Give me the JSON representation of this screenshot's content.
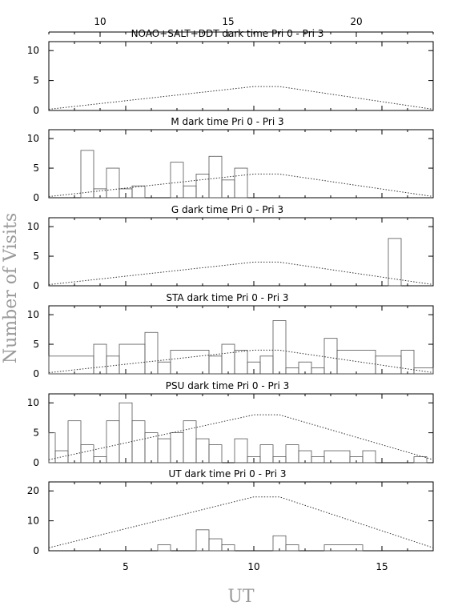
{
  "figure": {
    "ylabel": "Number of Visits",
    "xlabel": "UT",
    "top_axis_ticks": [
      10,
      15,
      20
    ],
    "top_axis_range": [
      8,
      23
    ],
    "bottom_axis_ticks": [
      5,
      10,
      15
    ],
    "bottom_axis_range": [
      2,
      17
    ],
    "colors": {
      "axes": "#000000",
      "histogram": "#555555",
      "dotted": "#333333",
      "axis_title": "#9a9a9a"
    }
  },
  "chart_data": [
    {
      "type": "step",
      "title": "NOAO+SALT+DDT dark time Pri 0 - Pri 3",
      "ylim": [
        0,
        11.5
      ],
      "yticks": [
        0,
        5,
        10
      ],
      "histogram": [],
      "dotted_line": {
        "x": [
          2,
          10,
          11,
          17
        ],
        "y": [
          0.2,
          4.0,
          4.0,
          0.2
        ]
      }
    },
    {
      "type": "step",
      "title": "M    dark time Pri 0 - Pri 3",
      "ylim": [
        0,
        11.5
      ],
      "yticks": [
        0,
        5,
        10
      ],
      "histogram": [
        {
          "x0": 3.25,
          "x1": 3.75,
          "y": 8
        },
        {
          "x0": 3.75,
          "x1": 4.25,
          "y": 1.5
        },
        {
          "x0": 4.25,
          "x1": 4.75,
          "y": 5
        },
        {
          "x0": 4.75,
          "x1": 5.25,
          "y": 1.5
        },
        {
          "x0": 5.25,
          "x1": 5.75,
          "y": 2
        },
        {
          "x0": 5.75,
          "x1": 6.25,
          "y": 0
        },
        {
          "x0": 6.25,
          "x1": 6.75,
          "y": 0
        },
        {
          "x0": 6.75,
          "x1": 7.25,
          "y": 6
        },
        {
          "x0": 7.25,
          "x1": 7.75,
          "y": 2
        },
        {
          "x0": 7.75,
          "x1": 8.25,
          "y": 4
        },
        {
          "x0": 8.25,
          "x1": 8.75,
          "y": 7
        },
        {
          "x0": 8.75,
          "x1": 9.25,
          "y": 3
        },
        {
          "x0": 9.25,
          "x1": 9.75,
          "y": 5
        }
      ],
      "dotted_line": {
        "x": [
          2,
          10,
          11,
          17
        ],
        "y": [
          0.2,
          4.0,
          4.0,
          0.2
        ]
      }
    },
    {
      "type": "step",
      "title": "G    dark time Pri 0 - Pri 3",
      "ylim": [
        0,
        11.5
      ],
      "yticks": [
        0,
        5,
        10
      ],
      "histogram": [
        {
          "x0": 15.25,
          "x1": 15.75,
          "y": 8
        }
      ],
      "dotted_line": {
        "x": [
          2,
          10,
          11,
          17
        ],
        "y": [
          0.2,
          4.0,
          4.0,
          0.2
        ]
      }
    },
    {
      "type": "step",
      "title": "STA    dark time Pri 0 - Pri 3",
      "ylim": [
        0,
        11.5
      ],
      "yticks": [
        0,
        5,
        10
      ],
      "histogram": [
        {
          "x0": 2.0,
          "x1": 3.75,
          "y": 3
        },
        {
          "x0": 3.75,
          "x1": 4.25,
          "y": 5
        },
        {
          "x0": 4.25,
          "x1": 4.75,
          "y": 3
        },
        {
          "x0": 4.75,
          "x1": 5.75,
          "y": 5
        },
        {
          "x0": 5.75,
          "x1": 6.25,
          "y": 7
        },
        {
          "x0": 6.25,
          "x1": 6.75,
          "y": 2
        },
        {
          "x0": 6.75,
          "x1": 8.25,
          "y": 4
        },
        {
          "x0": 8.25,
          "x1": 8.75,
          "y": 3
        },
        {
          "x0": 8.75,
          "x1": 9.25,
          "y": 5
        },
        {
          "x0": 9.25,
          "x1": 9.75,
          "y": 4
        },
        {
          "x0": 9.75,
          "x1": 10.25,
          "y": 2
        },
        {
          "x0": 10.25,
          "x1": 10.75,
          "y": 3
        },
        {
          "x0": 10.75,
          "x1": 11.25,
          "y": 9
        },
        {
          "x0": 11.25,
          "x1": 11.75,
          "y": 1
        },
        {
          "x0": 11.75,
          "x1": 12.25,
          "y": 2
        },
        {
          "x0": 12.25,
          "x1": 12.75,
          "y": 1
        },
        {
          "x0": 12.75,
          "x1": 13.25,
          "y": 6
        },
        {
          "x0": 13.25,
          "x1": 14.75,
          "y": 4
        },
        {
          "x0": 14.75,
          "x1": 15.75,
          "y": 3
        },
        {
          "x0": 15.75,
          "x1": 16.25,
          "y": 4
        },
        {
          "x0": 16.25,
          "x1": 17.0,
          "y": 1
        }
      ],
      "dotted_line": {
        "x": [
          2,
          10,
          11,
          17
        ],
        "y": [
          0.2,
          4.0,
          4.0,
          0.2
        ]
      }
    },
    {
      "type": "step",
      "title": "PSU    dark time Pri 0 - Pri 3",
      "ylim": [
        0,
        11.5
      ],
      "yticks": [
        0,
        5,
        10
      ],
      "histogram": [
        {
          "x0": 2.0,
          "x1": 2.25,
          "y": 5
        },
        {
          "x0": 2.25,
          "x1": 2.75,
          "y": 2
        },
        {
          "x0": 2.75,
          "x1": 3.25,
          "y": 7
        },
        {
          "x0": 3.25,
          "x1": 3.75,
          "y": 3
        },
        {
          "x0": 3.75,
          "x1": 4.25,
          "y": 1
        },
        {
          "x0": 4.25,
          "x1": 4.75,
          "y": 7
        },
        {
          "x0": 4.75,
          "x1": 5.25,
          "y": 10
        },
        {
          "x0": 5.25,
          "x1": 5.75,
          "y": 7
        },
        {
          "x0": 5.75,
          "x1": 6.25,
          "y": 5
        },
        {
          "x0": 6.25,
          "x1": 6.75,
          "y": 4
        },
        {
          "x0": 6.75,
          "x1": 7.25,
          "y": 5
        },
        {
          "x0": 7.25,
          "x1": 7.75,
          "y": 7
        },
        {
          "x0": 7.75,
          "x1": 8.25,
          "y": 4
        },
        {
          "x0": 8.25,
          "x1": 8.75,
          "y": 3
        },
        {
          "x0": 8.75,
          "x1": 9.25,
          "y": 0
        },
        {
          "x0": 9.25,
          "x1": 9.75,
          "y": 4
        },
        {
          "x0": 9.75,
          "x1": 10.25,
          "y": 1
        },
        {
          "x0": 10.25,
          "x1": 10.75,
          "y": 3
        },
        {
          "x0": 10.75,
          "x1": 11.25,
          "y": 1
        },
        {
          "x0": 11.25,
          "x1": 11.75,
          "y": 3
        },
        {
          "x0": 11.75,
          "x1": 12.25,
          "y": 2
        },
        {
          "x0": 12.25,
          "x1": 12.75,
          "y": 1
        },
        {
          "x0": 12.75,
          "x1": 13.75,
          "y": 2
        },
        {
          "x0": 13.75,
          "x1": 14.25,
          "y": 1
        },
        {
          "x0": 14.25,
          "x1": 14.75,
          "y": 2
        },
        {
          "x0": 14.75,
          "x1": 15.25,
          "y": 0
        },
        {
          "x0": 15.25,
          "x1": 16.25,
          "y": 0
        },
        {
          "x0": 16.25,
          "x1": 16.75,
          "y": 1
        }
      ],
      "dotted_line": {
        "x": [
          2,
          10,
          11,
          17
        ],
        "y": [
          0.5,
          8.0,
          8.0,
          0.5
        ]
      }
    },
    {
      "type": "step",
      "title": "UT    dark time Pri 0 - Pri 3",
      "ylim": [
        0,
        23
      ],
      "yticks": [
        0,
        10,
        20
      ],
      "histogram": [
        {
          "x0": 6.25,
          "x1": 6.75,
          "y": 2
        },
        {
          "x0": 7.75,
          "x1": 8.25,
          "y": 7
        },
        {
          "x0": 8.25,
          "x1": 8.75,
          "y": 4
        },
        {
          "x0": 8.75,
          "x1": 9.25,
          "y": 2
        },
        {
          "x0": 10.75,
          "x1": 11.25,
          "y": 5
        },
        {
          "x0": 11.25,
          "x1": 11.75,
          "y": 2
        },
        {
          "x0": 12.75,
          "x1": 14.25,
          "y": 2
        }
      ],
      "dotted_line": {
        "x": [
          2,
          10,
          11,
          17
        ],
        "y": [
          1.0,
          18.0,
          18.0,
          1.0
        ]
      }
    }
  ]
}
